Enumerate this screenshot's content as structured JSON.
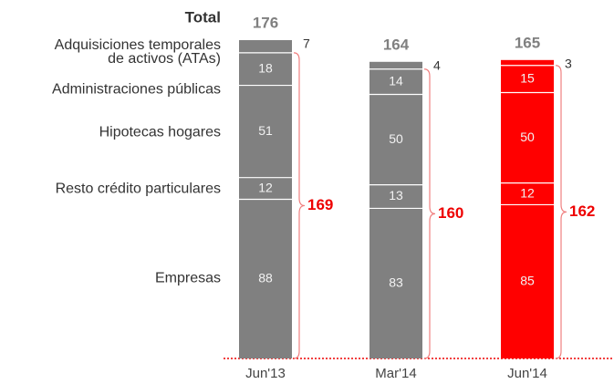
{
  "chart_data": {
    "type": "stacked_bar",
    "total_label": "Total",
    "categories": [
      "Jun'13",
      "Mar'14",
      "Jun'14"
    ],
    "colors": [
      "#808080",
      "#808080",
      "#ff0000"
    ],
    "series": [
      {
        "name": "Empresas",
        "values": [
          88,
          83,
          85
        ]
      },
      {
        "name": "Resto crédito particulares",
        "values": [
          12,
          13,
          12
        ]
      },
      {
        "name": "Hipotecas hogares",
        "values": [
          51,
          50,
          50
        ]
      },
      {
        "name": "Administraciones públicas",
        "values": [
          18,
          14,
          15
        ]
      },
      {
        "name": "Adquisiciones temporales de activos (ATAs)",
        "values": [
          7,
          4,
          3
        ]
      }
    ],
    "totals": [
      176,
      164,
      165
    ],
    "brace_labels": [
      169,
      160,
      162
    ]
  }
}
